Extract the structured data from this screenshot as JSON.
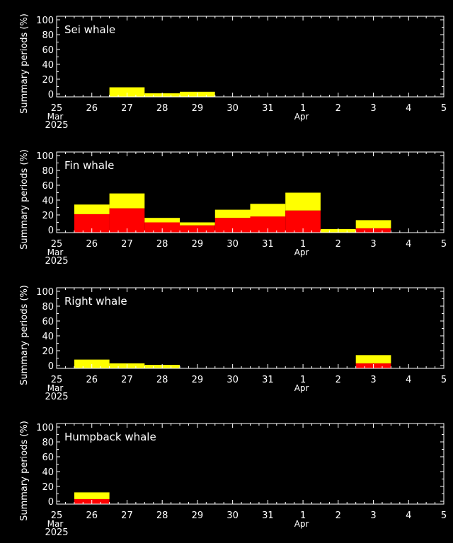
{
  "ylabel": "Summary periods (%)",
  "colors": {
    "background": "#000000",
    "foreground": "#ffffff",
    "possibly": "#ffff00",
    "detected": "#ff0000"
  },
  "x_axis": {
    "ticks": [
      {
        "label": "25",
        "sub": "Mar",
        "year": "2025"
      },
      {
        "label": "26"
      },
      {
        "label": "27"
      },
      {
        "label": "28"
      },
      {
        "label": "29"
      },
      {
        "label": "30"
      },
      {
        "label": "31"
      },
      {
        "label": "1",
        "sub": "Apr"
      },
      {
        "label": "2"
      },
      {
        "label": "3"
      },
      {
        "label": "4"
      },
      {
        "label": "5"
      }
    ]
  },
  "y_axis": {
    "ticks": [
      "0",
      "20",
      "40",
      "60",
      "80",
      "100"
    ]
  },
  "chart_data": [
    {
      "type": "bar",
      "title": "Sei whale",
      "categories": [
        "26",
        "27",
        "28",
        "29",
        "30",
        "31",
        "1",
        "2",
        "3",
        "4"
      ],
      "ylim": [
        0,
        100
      ],
      "series": [
        {
          "key": "detected",
          "values": [
            0,
            0,
            0,
            0,
            0,
            0,
            0,
            0,
            0,
            0
          ]
        },
        {
          "key": "possibly",
          "values": [
            0,
            9,
            1,
            3,
            0,
            0,
            0,
            0,
            0,
            0
          ]
        }
      ]
    },
    {
      "type": "bar",
      "title": "Fin whale",
      "categories": [
        "26",
        "27",
        "28",
        "29",
        "30",
        "31",
        "1",
        "2",
        "3",
        "4"
      ],
      "ylim": [
        0,
        100
      ],
      "series": [
        {
          "key": "detected",
          "values": [
            21,
            29,
            10,
            6,
            16,
            18,
            26,
            0,
            2,
            0
          ]
        },
        {
          "key": "possibly",
          "values": [
            13,
            20,
            6,
            4,
            11,
            17,
            24,
            1,
            11,
            0
          ]
        }
      ]
    },
    {
      "type": "bar",
      "title": "Right whale",
      "categories": [
        "26",
        "27",
        "28",
        "29",
        "30",
        "31",
        "1",
        "2",
        "3",
        "4"
      ],
      "ylim": [
        0,
        100
      ],
      "series": [
        {
          "key": "detected",
          "values": [
            0,
            0,
            0,
            0,
            0,
            0,
            0,
            0,
            3,
            0
          ]
        },
        {
          "key": "possibly",
          "values": [
            8,
            3,
            1,
            0,
            0,
            0,
            0,
            0,
            11,
            0
          ]
        }
      ]
    },
    {
      "type": "bar",
      "title": "Humpback whale",
      "categories": [
        "26",
        "27",
        "28",
        "29",
        "30",
        "31",
        "1",
        "2",
        "3",
        "4"
      ],
      "ylim": [
        0,
        100
      ],
      "series": [
        {
          "key": "detected",
          "values": [
            3,
            0,
            0,
            0,
            0,
            0,
            0,
            0,
            0,
            0
          ]
        },
        {
          "key": "possibly",
          "values": [
            9,
            0,
            0,
            0,
            0,
            0,
            0,
            0,
            0,
            0
          ]
        }
      ]
    }
  ]
}
